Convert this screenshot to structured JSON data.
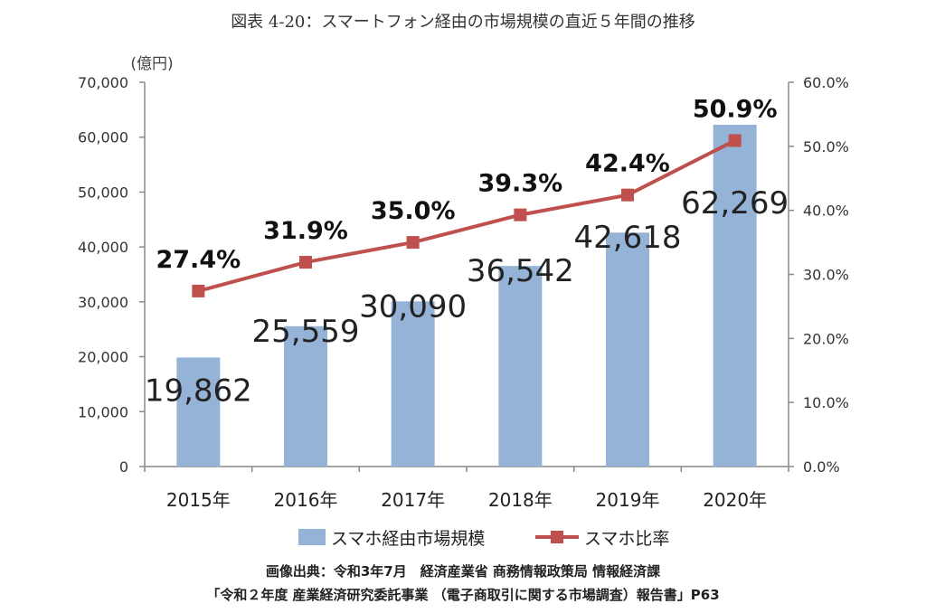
{
  "figure_title": "図表 4-20：スマートフォン経由の市場規模の直近５年間の推移",
  "unit_label": "(億円)",
  "source_lines": [
    "画像出典：令和3年7月　経済産業省 商務情報政策局 情報経済課",
    "「令和２年度 産業経済研究委託事業 （電子商取引に関する市場調査）報告書」P63"
  ],
  "chart_data": {
    "type": "bar+line",
    "title": "図表 4-20：スマートフォン経由の市場規模の直近５年間の推移",
    "categories": [
      "2015年",
      "2016年",
      "2017年",
      "2018年",
      "2019年",
      "2020年"
    ],
    "series": [
      {
        "name": "スマホ経由市場規模",
        "type": "bar",
        "axis": "left",
        "values": [
          19862,
          25559,
          30090,
          36542,
          42618,
          62269
        ],
        "labels": [
          "19,862",
          "25,559",
          "30,090",
          "36,542",
          "42,618",
          "62,269"
        ],
        "color": "#95b3d7"
      },
      {
        "name": "スマホ比率",
        "type": "line",
        "axis": "right",
        "values": [
          27.4,
          31.9,
          35.0,
          39.3,
          42.4,
          50.9
        ],
        "labels": [
          "27.4%",
          "31.9%",
          "35.0%",
          "39.3%",
          "42.4%",
          "50.9%"
        ],
        "color": "#c0504d"
      }
    ],
    "y_left": {
      "unit": "(億円)",
      "range": [
        0,
        70000
      ],
      "ticks": [
        "0",
        "10,000",
        "20,000",
        "30,000",
        "40,000",
        "50,000",
        "60,000",
        "70,000"
      ]
    },
    "y_right": {
      "range": [
        0,
        60
      ],
      "ticks": [
        "0.0%",
        "10.0%",
        "20.0%",
        "30.0%",
        "40.0%",
        "50.0%",
        "60.0%"
      ]
    },
    "grid": false,
    "legend_position": "bottom"
  }
}
